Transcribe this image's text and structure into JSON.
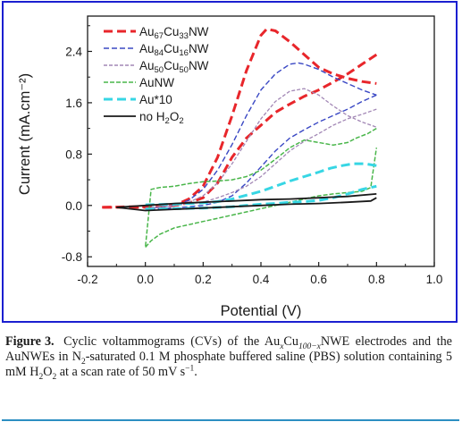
{
  "figure_frame_color": "#1b1fd0",
  "rule_color": "#2c8fc2",
  "chart_data": {
    "type": "line",
    "xlabel": "Potential (V)",
    "ylabel": "Current (mA.cm⁻²)",
    "xlim": [
      -0.2,
      1.0
    ],
    "ylim": [
      -0.95,
      2.95
    ],
    "xticks": [
      "-0.2",
      "0.0",
      "0.2",
      "0.4",
      "0.6",
      "0.8",
      "1.0"
    ],
    "yticks": [
      "-0.8",
      "0.0",
      "0.8",
      "1.6",
      "2.4"
    ],
    "grid": false,
    "legend_position": "top-left",
    "series": [
      {
        "name": "Au67Cu33NW",
        "legend": {
          "base1": "Au",
          "sub1": "67",
          "base2": "Cu",
          "sub2": "33",
          "tail": "NW"
        },
        "color": "#e8262b",
        "dash": "10,5",
        "width": 3,
        "segments": [
          [
            [
              -0.15,
              -0.03
            ],
            [
              -0.05,
              -0.02
            ],
            [
              0.0,
              -0.02
            ],
            [
              0.05,
              -0.02
            ],
            [
              0.1,
              0.0
            ],
            [
              0.15,
              0.1
            ],
            [
              0.2,
              0.3
            ],
            [
              0.25,
              0.75
            ],
            [
              0.3,
              1.4
            ],
            [
              0.35,
              2.1
            ],
            [
              0.4,
              2.65
            ],
            [
              0.42,
              2.75
            ],
            [
              0.45,
              2.72
            ],
            [
              0.5,
              2.55
            ],
            [
              0.55,
              2.35
            ],
            [
              0.6,
              2.15
            ],
            [
              0.65,
              2.05
            ],
            [
              0.7,
              1.98
            ],
            [
              0.75,
              1.93
            ],
            [
              0.8,
              1.9
            ]
          ],
          [
            [
              0.8,
              2.35
            ],
            [
              0.75,
              2.2
            ],
            [
              0.7,
              2.05
            ],
            [
              0.65,
              1.92
            ],
            [
              0.6,
              1.8
            ],
            [
              0.55,
              1.7
            ],
            [
              0.5,
              1.58
            ],
            [
              0.45,
              1.45
            ],
            [
              0.4,
              1.25
            ],
            [
              0.35,
              1.05
            ],
            [
              0.3,
              0.75
            ],
            [
              0.25,
              0.35
            ],
            [
              0.2,
              0.12
            ],
            [
              0.15,
              0.04
            ],
            [
              0.1,
              0.0
            ],
            [
              0.05,
              -0.02
            ],
            [
              0.0,
              -0.03
            ],
            [
              -0.05,
              -0.03
            ],
            [
              -0.1,
              -0.03
            ],
            [
              -0.15,
              -0.03
            ]
          ]
        ]
      },
      {
        "name": "Au84Cu16NW",
        "legend": {
          "base1": "Au",
          "sub1": "84",
          "base2": "Cu",
          "sub2": "16",
          "tail": "NW"
        },
        "color": "#3a48c4",
        "dash": "6,3",
        "width": 1.4,
        "segments": [
          [
            [
              0.0,
              -0.05
            ],
            [
              0.1,
              0.0
            ],
            [
              0.15,
              0.08
            ],
            [
              0.2,
              0.25
            ],
            [
              0.25,
              0.55
            ],
            [
              0.3,
              0.95
            ],
            [
              0.35,
              1.4
            ],
            [
              0.4,
              1.8
            ],
            [
              0.45,
              2.05
            ],
            [
              0.5,
              2.2
            ],
            [
              0.53,
              2.22
            ],
            [
              0.55,
              2.2
            ],
            [
              0.6,
              2.12
            ],
            [
              0.65,
              2.0
            ],
            [
              0.7,
              1.9
            ],
            [
              0.75,
              1.8
            ],
            [
              0.8,
              1.72
            ]
          ],
          [
            [
              0.8,
              1.72
            ],
            [
              0.75,
              1.62
            ],
            [
              0.7,
              1.5
            ],
            [
              0.65,
              1.4
            ],
            [
              0.6,
              1.3
            ],
            [
              0.55,
              1.18
            ],
            [
              0.5,
              1.05
            ],
            [
              0.45,
              0.85
            ],
            [
              0.4,
              0.6
            ],
            [
              0.35,
              0.35
            ],
            [
              0.3,
              0.15
            ],
            [
              0.25,
              0.05
            ],
            [
              0.2,
              0.0
            ],
            [
              0.1,
              -0.04
            ],
            [
              0.0,
              -0.06
            ]
          ]
        ]
      },
      {
        "name": "Au50Cu50NW",
        "legend": {
          "base1": "Au",
          "sub1": "50",
          "base2": "Cu",
          "sub2": "50",
          "tail": "NW"
        },
        "color": "#a287b5",
        "dash": "4,2",
        "width": 1.3,
        "segments": [
          [
            [
              0.0,
              -0.04
            ],
            [
              0.1,
              0.0
            ],
            [
              0.15,
              0.05
            ],
            [
              0.2,
              0.15
            ],
            [
              0.25,
              0.35
            ],
            [
              0.3,
              0.65
            ],
            [
              0.35,
              1.0
            ],
            [
              0.4,
              1.35
            ],
            [
              0.45,
              1.62
            ],
            [
              0.5,
              1.78
            ],
            [
              0.55,
              1.82
            ],
            [
              0.6,
              1.72
            ],
            [
              0.65,
              1.55
            ],
            [
              0.7,
              1.4
            ],
            [
              0.75,
              1.3
            ],
            [
              0.8,
              1.22
            ]
          ],
          [
            [
              0.8,
              1.5
            ],
            [
              0.75,
              1.42
            ],
            [
              0.7,
              1.35
            ],
            [
              0.65,
              1.25
            ],
            [
              0.6,
              1.12
            ],
            [
              0.55,
              1.0
            ],
            [
              0.5,
              0.85
            ],
            [
              0.45,
              0.65
            ],
            [
              0.4,
              0.45
            ],
            [
              0.35,
              0.3
            ],
            [
              0.3,
              0.2
            ],
            [
              0.25,
              0.12
            ],
            [
              0.2,
              0.05
            ],
            [
              0.1,
              0.0
            ],
            [
              0.0,
              -0.05
            ]
          ]
        ]
      },
      {
        "name": "AuNW",
        "legend": {
          "base1": "AuNW"
        },
        "color": "#49b64a",
        "dash": "5,2",
        "width": 1.5,
        "segments": [
          [
            [
              0.0,
              -0.65
            ],
            [
              0.02,
              -0.55
            ],
            [
              0.05,
              -0.45
            ],
            [
              0.1,
              -0.35
            ],
            [
              0.15,
              -0.3
            ],
            [
              0.2,
              -0.25
            ],
            [
              0.25,
              -0.2
            ],
            [
              0.3,
              -0.15
            ],
            [
              0.35,
              -0.1
            ],
            [
              0.4,
              -0.05
            ],
            [
              0.45,
              0.0
            ],
            [
              0.5,
              0.05
            ],
            [
              0.55,
              0.1
            ],
            [
              0.6,
              0.15
            ],
            [
              0.65,
              0.18
            ],
            [
              0.7,
              0.2
            ],
            [
              0.75,
              0.22
            ],
            [
              0.78,
              0.28
            ],
            [
              0.8,
              0.9
            ]
          ],
          [
            [
              0.8,
              1.2
            ],
            [
              0.77,
              1.12
            ],
            [
              0.73,
              1.05
            ],
            [
              0.7,
              0.98
            ],
            [
              0.65,
              0.94
            ],
            [
              0.6,
              0.98
            ],
            [
              0.55,
              1.02
            ],
            [
              0.5,
              0.9
            ],
            [
              0.45,
              0.72
            ],
            [
              0.4,
              0.55
            ],
            [
              0.35,
              0.45
            ],
            [
              0.3,
              0.4
            ],
            [
              0.25,
              0.38
            ],
            [
              0.2,
              0.37
            ],
            [
              0.15,
              0.34
            ],
            [
              0.1,
              0.3
            ],
            [
              0.05,
              0.28
            ],
            [
              0.02,
              0.25
            ],
            [
              0.0,
              -0.65
            ]
          ]
        ]
      },
      {
        "name": "Au*10",
        "legend": {
          "base1": "Au*10"
        },
        "color": "#37d6e4",
        "dash": "10,5",
        "width": 3,
        "segments": [
          [
            [
              0.0,
              -0.06
            ],
            [
              0.1,
              -0.05
            ],
            [
              0.2,
              -0.04
            ],
            [
              0.3,
              -0.02
            ],
            [
              0.35,
              0.0
            ],
            [
              0.4,
              0.02
            ],
            [
              0.45,
              0.03
            ],
            [
              0.5,
              0.05
            ],
            [
              0.55,
              0.06
            ],
            [
              0.6,
              0.08
            ],
            [
              0.65,
              0.12
            ],
            [
              0.7,
              0.18
            ],
            [
              0.75,
              0.25
            ],
            [
              0.8,
              0.3
            ]
          ],
          [
            [
              0.8,
              0.62
            ],
            [
              0.76,
              0.65
            ],
            [
              0.72,
              0.65
            ],
            [
              0.68,
              0.62
            ],
            [
              0.64,
              0.58
            ],
            [
              0.6,
              0.52
            ],
            [
              0.55,
              0.45
            ],
            [
              0.5,
              0.38
            ],
            [
              0.45,
              0.3
            ],
            [
              0.4,
              0.22
            ],
            [
              0.35,
              0.16
            ],
            [
              0.3,
              0.1
            ],
            [
              0.25,
              0.06
            ],
            [
              0.2,
              0.04
            ],
            [
              0.1,
              0.02
            ],
            [
              0.0,
              0.01
            ]
          ]
        ]
      },
      {
        "name": "no H2O2",
        "legend": {
          "base1": "no H",
          "sub1": "2",
          "base2": "O",
          "sub2": "2",
          "tail": ""
        },
        "color": "#1a1a1a",
        "dash": "",
        "width": 1.8,
        "segments": [
          [
            [
              -0.1,
              -0.03
            ],
            [
              0.0,
              -0.08
            ],
            [
              0.1,
              -0.06
            ],
            [
              0.2,
              -0.04
            ],
            [
              0.3,
              -0.02
            ],
            [
              0.4,
              0.0
            ],
            [
              0.5,
              0.02
            ],
            [
              0.6,
              0.03
            ],
            [
              0.7,
              0.05
            ],
            [
              0.78,
              0.07
            ],
            [
              0.8,
              0.12
            ]
          ],
          [
            [
              0.8,
              0.18
            ],
            [
              0.7,
              0.14
            ],
            [
              0.6,
              0.12
            ],
            [
              0.5,
              0.1
            ],
            [
              0.4,
              0.09
            ],
            [
              0.3,
              0.07
            ],
            [
              0.2,
              0.05
            ],
            [
              0.1,
              0.03
            ],
            [
              0.0,
              0.0
            ],
            [
              -0.1,
              -0.03
            ]
          ]
        ]
      }
    ]
  },
  "caption": {
    "label_word": "Figure",
    "label_num": "3.",
    "t1": " Cyclic voltammograms (CVs) of the Au",
    "s1": "x",
    "t2": "Cu",
    "s2": "100−x",
    "t3": "NWE electrodes and the AuNWEs in N",
    "s3": "2",
    "t4": "-saturated 0.1 M phosphate buffered saline (PBS) solution containing 5 mM H",
    "s4": "2",
    "t5": "O",
    "s5": "2",
    "t6": " at a scan rate of 50 mV s",
    "sup": "−1",
    "t7": "."
  }
}
